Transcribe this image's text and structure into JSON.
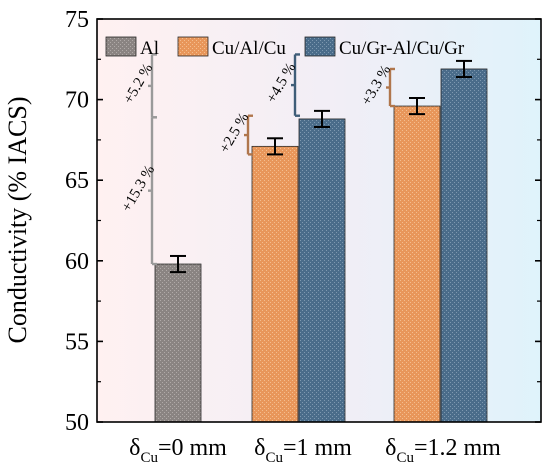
{
  "chart_data": {
    "type": "bar",
    "ylabel": "Conductivity (% IACS)",
    "xlabel": "",
    "ylim": [
      50,
      75
    ],
    "yticks": [
      "50",
      "55",
      "60",
      "65",
      "70",
      "75"
    ],
    "grid": false,
    "legend_position": "top",
    "categories": [
      {
        "main": "δ",
        "sub": "Cu",
        "rest": "=0 mm"
      },
      {
        "main": "δ",
        "sub": "Cu",
        "rest": "=1 mm"
      },
      {
        "main": "δ",
        "sub": "Cu",
        "rest": "=1.2 mm"
      }
    ],
    "series": [
      {
        "name": "Al",
        "color": "#8a8482",
        "hatch": "gray",
        "values": [
          59.8,
          null,
          null
        ],
        "errors": [
          0.5,
          null,
          null
        ]
      },
      {
        "name": "Cu/Al/Cu",
        "color": "#e89a5c",
        "hatch": "orange",
        "values": [
          null,
          67.1,
          69.6
        ],
        "errors": [
          null,
          0.5,
          0.5
        ]
      },
      {
        "name": "Cu/Gr-Al/Cu/Gr",
        "color": "#4c6f8d",
        "hatch": "blue",
        "values": [
          null,
          68.8,
          71.9
        ],
        "errors": [
          null,
          0.5,
          0.5
        ]
      }
    ],
    "annotations": [
      {
        "text": "+15.3 %",
        "from": 59.8,
        "to": 68.9,
        "color": "#9a9a9a",
        "category": 0
      },
      {
        "text": "+5.2 %",
        "from": 68.9,
        "to": 72.8,
        "color": "#9a9a9a",
        "category": 0
      },
      {
        "text": "+2.5 %",
        "from": 66.6,
        "to": 69.0,
        "color": "#b0764c",
        "category": 1
      },
      {
        "text": "+4.5 %",
        "from": 69.0,
        "to": 72.8,
        "color": "#3f5d78",
        "category": 1
      },
      {
        "text": "+3.3 %",
        "from": 69.6,
        "to": 71.9,
        "color": "#b0764c",
        "category": 2
      }
    ],
    "backgrounds": [
      "#fdeeee",
      "#f3f0f3",
      "#e3f3fa"
    ]
  }
}
